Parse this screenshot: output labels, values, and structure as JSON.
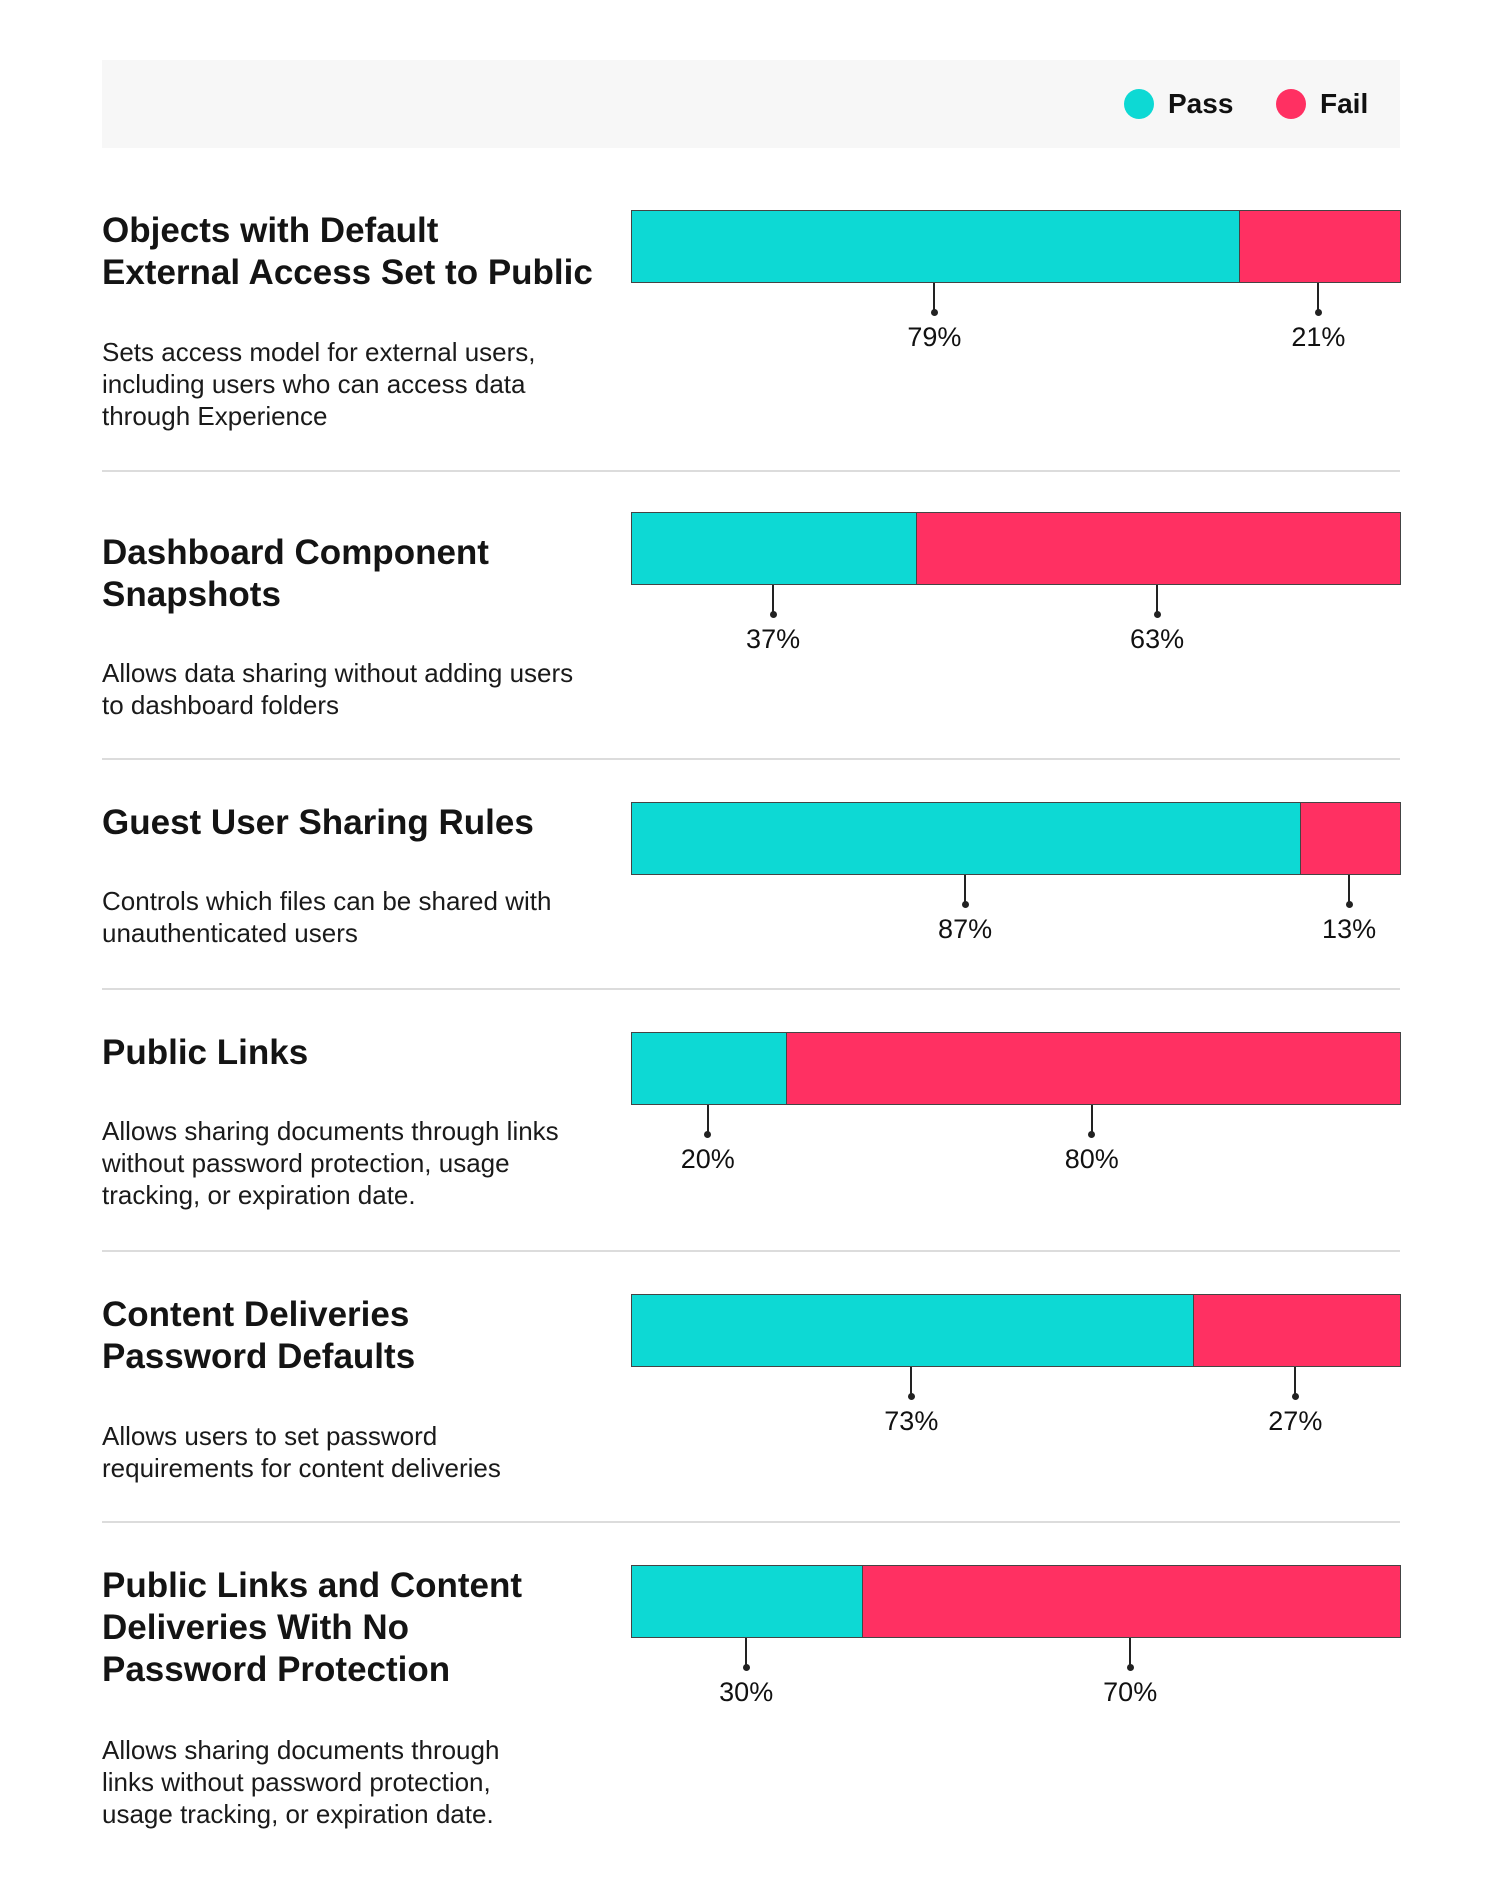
{
  "legend": {
    "pass_label": "Pass",
    "fail_label": "Fail",
    "pass_color": "#0dd9d4",
    "fail_color": "#ff3062"
  },
  "chart_data": {
    "type": "bar",
    "orientation": "horizontal-stacked-100",
    "series": [
      {
        "name": "Pass",
        "values": [
          79,
          37,
          87,
          20,
          73,
          30
        ]
      },
      {
        "name": "Fail",
        "values": [
          21,
          63,
          13,
          80,
          27,
          70
        ]
      }
    ],
    "categories": [
      "Objects with Default External Access Set to Public",
      "Dashboard Component Snapshots",
      "Guest User Sharing Rules",
      "Public Links",
      "Content Deliveries Password Defaults",
      "Public Links and Content Deliveries With No Password Protection"
    ],
    "unit": "%",
    "legend_position": "top-right"
  },
  "rows": [
    {
      "title": "Objects with Default\nExternal Access Set to Public",
      "description": "Sets access model for external users,\nincluding users who can access data\nthrough Experience",
      "pass": 79,
      "fail": 21,
      "pass_label": "79%",
      "fail_label": "21%"
    },
    {
      "title": "Dashboard Component\nSnapshots",
      "description": "Allows data sharing without adding users\nto dashboard folders",
      "pass": 37,
      "fail": 63,
      "pass_label": "37%",
      "fail_label": "63%"
    },
    {
      "title": "Guest User Sharing Rules",
      "description": "Controls which files can be shared with\nunauthenticated users",
      "pass": 87,
      "fail": 13,
      "pass_label": "87%",
      "fail_label": "13%"
    },
    {
      "title": "Public Links",
      "description": "Allows sharing documents through links\nwithout password protection, usage\ntracking, or expiration date.",
      "pass": 20,
      "fail": 80,
      "pass_label": "20%",
      "fail_label": "80%"
    },
    {
      "title": "Content Deliveries\nPassword Defaults",
      "description": "Allows users to set password\nrequirements for content deliveries",
      "pass": 73,
      "fail": 27,
      "pass_label": "73%",
      "fail_label": "27%"
    },
    {
      "title": "Public Links and Content\nDeliveries With No\nPassword Protection",
      "description": "Allows sharing documents through\nlinks without password protection,\nusage tracking, or expiration date.",
      "pass": 30,
      "fail": 70,
      "pass_label": "30%",
      "fail_label": "70%"
    }
  ]
}
